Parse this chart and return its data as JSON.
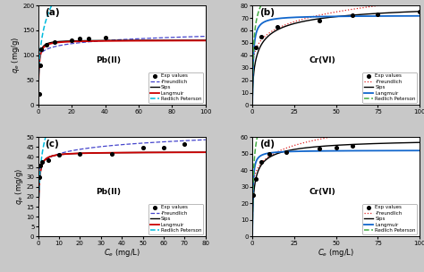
{
  "panels": [
    {
      "label": "(a)",
      "ion": "Pb(II)",
      "xlim": [
        0,
        100
      ],
      "ylim": [
        0,
        200
      ],
      "yticks": [
        0,
        50,
        100,
        150,
        200
      ],
      "xticks": [
        0,
        20,
        40,
        60,
        80,
        100
      ],
      "exp_x": [
        0.5,
        1.0,
        2.0,
        5.0,
        10.0,
        20.0,
        25.0,
        30.0,
        40.0
      ],
      "exp_y": [
        22,
        80,
        113,
        122,
        127,
        131,
        134,
        133,
        135
      ],
      "langmuir_qm": 130.0,
      "langmuir_KL": 2.5,
      "sips_qm": 130.5,
      "sips_KS": 2.5,
      "sips_n": 1.1,
      "freundlich_KF": 100.0,
      "freundlich_n": 0.07,
      "rp_A": 500.0,
      "rp_B": 4.0,
      "rp_g": 0.75,
      "freundlich_color": "#4444cc",
      "freundlich_style": "--",
      "sips_color": "#000000",
      "sips_style": "-",
      "langmuir_color": "#cc0000",
      "langmuir_style": "-",
      "rp_color": "#00bbdd",
      "rp_style": "--",
      "show_xlabel": false,
      "show_ylabel": true,
      "ion_x": 0.42,
      "ion_y": 0.45,
      "row": 0,
      "col": 0
    },
    {
      "label": "(b)",
      "ion": "Cr(VI)",
      "xlim": [
        0,
        100
      ],
      "ylim": [
        0,
        80
      ],
      "yticks": [
        0,
        10,
        20,
        30,
        40,
        50,
        60,
        70,
        80
      ],
      "xticks": [
        0,
        25,
        50,
        75,
        100
      ],
      "exp_x": [
        2.0,
        5.0,
        15.0,
        40.0,
        60.0,
        75.0,
        100.0
      ],
      "exp_y": [
        46,
        55,
        63,
        68,
        72,
        73,
        75
      ],
      "langmuir_qm": 72.0,
      "langmuir_KL": 1.8,
      "sips_qm": 85.0,
      "sips_KS": 0.3,
      "sips_n": 0.6,
      "freundlich_KF": 40.0,
      "freundlich_n": 0.16,
      "rp_A": 200.0,
      "rp_B": 2.8,
      "rp_g": 0.88,
      "freundlich_color": "#dd2222",
      "freundlich_style": ":",
      "sips_color": "#000000",
      "sips_style": "-",
      "langmuir_color": "#1166cc",
      "langmuir_style": "-",
      "rp_color": "#44aa44",
      "rp_style": "--",
      "show_xlabel": false,
      "show_ylabel": false,
      "ion_x": 0.42,
      "ion_y": 0.45,
      "row": 0,
      "col": 1
    },
    {
      "label": "(c)",
      "ion": "Pb(II)",
      "xlim": [
        0,
        80
      ],
      "ylim": [
        0,
        50
      ],
      "yticks": [
        0,
        5,
        10,
        15,
        20,
        25,
        30,
        35,
        40,
        45,
        50
      ],
      "xticks": [
        0,
        10,
        20,
        30,
        40,
        50,
        60,
        70,
        80
      ],
      "exp_x": [
        0.5,
        1.0,
        2.0,
        5.0,
        10.0,
        20.0,
        35.0,
        50.0,
        60.0,
        70.0
      ],
      "exp_y": [
        30.0,
        35.5,
        37.5,
        38.5,
        41.0,
        41.5,
        41.5,
        44.5,
        44.5,
        46.5
      ],
      "langmuir_qm": 42.5,
      "langmuir_KL": 3.0,
      "sips_qm": 42.5,
      "sips_KS": 3.0,
      "sips_n": 1.0,
      "freundlich_KF": 35.0,
      "freundlich_n": 0.075,
      "rp_A": 150.0,
      "rp_B": 3.5,
      "rp_g": 0.8,
      "freundlich_color": "#4444cc",
      "freundlich_style": "--",
      "sips_color": "#000000",
      "sips_style": "-",
      "langmuir_color": "#cc0000",
      "langmuir_style": "-",
      "rp_color": "#00bbdd",
      "rp_style": "--",
      "show_xlabel": true,
      "show_ylabel": true,
      "ion_x": 0.42,
      "ion_y": 0.45,
      "row": 1,
      "col": 0
    },
    {
      "label": "(d)",
      "ion": "Cr(VI)",
      "xlim": [
        0,
        100
      ],
      "ylim": [
        0,
        60
      ],
      "yticks": [
        0,
        10,
        20,
        30,
        40,
        50,
        60
      ],
      "xticks": [
        0,
        25,
        50,
        75,
        100
      ],
      "exp_x": [
        0.5,
        2.0,
        5.0,
        10.0,
        20.0,
        40.0,
        50.0,
        60.0
      ],
      "exp_y": [
        25.0,
        35.0,
        45.0,
        50.0,
        51.0,
        53.0,
        53.5,
        54.5
      ],
      "langmuir_qm": 52.0,
      "langmuir_KL": 3.0,
      "sips_qm": 60.0,
      "sips_KS": 0.8,
      "sips_n": 0.65,
      "freundlich_KF": 35.0,
      "freundlich_n": 0.14,
      "rp_A": 200.0,
      "rp_B": 3.5,
      "rp_g": 0.85,
      "freundlich_color": "#dd2222",
      "freundlich_style": ":",
      "sips_color": "#000000",
      "sips_style": "-",
      "langmuir_color": "#1166cc",
      "langmuir_style": "-",
      "rp_color": "#44aa44",
      "rp_style": "--",
      "show_xlabel": true,
      "show_ylabel": false,
      "ion_x": 0.42,
      "ion_y": 0.45,
      "row": 1,
      "col": 1
    }
  ],
  "exp_color": "#000000",
  "bg_color": "#c8c8c8"
}
